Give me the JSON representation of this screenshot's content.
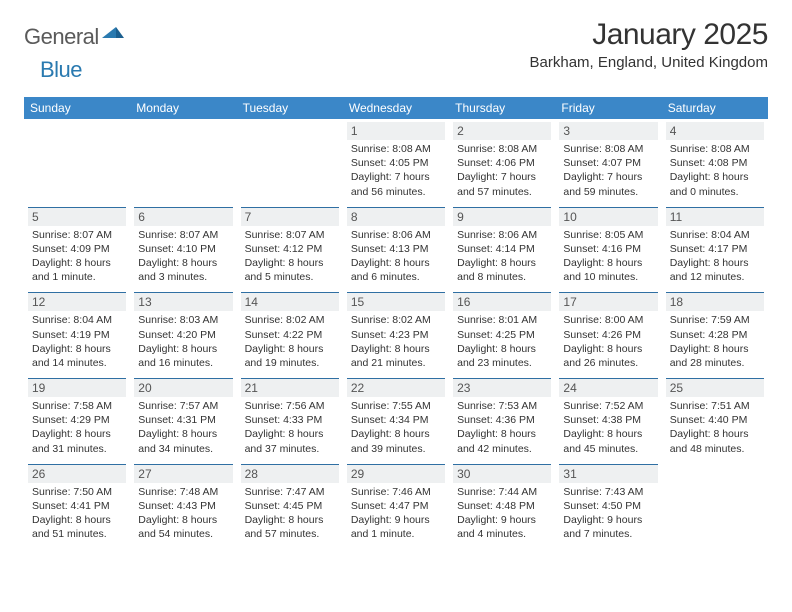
{
  "logo": {
    "word1": "General",
    "word2": "Blue"
  },
  "title": "January 2025",
  "location": "Barkham, England, United Kingdom",
  "colors": {
    "header_bg": "#3b87c8",
    "header_text": "#ffffff",
    "daynum_bg": "#eef0f1",
    "daynum_text": "#555555",
    "rule": "#2f6fa3",
    "body_text": "#333333",
    "logo_gray": "#5a5a5a",
    "logo_blue": "#2a7ab0",
    "page_bg": "#ffffff"
  },
  "typography": {
    "title_fontsize": 30,
    "location_fontsize": 15,
    "header_fontsize": 12,
    "daynum_fontsize": 12,
    "details_fontsize": 10.5,
    "font_family": "Arial"
  },
  "table": {
    "type": "calendar",
    "columns": [
      "Sunday",
      "Monday",
      "Tuesday",
      "Wednesday",
      "Thursday",
      "Friday",
      "Saturday"
    ],
    "rows": [
      [
        {
          "empty": true
        },
        {
          "empty": true
        },
        {
          "empty": true
        },
        {
          "day": "1",
          "sunrise": "Sunrise: 8:08 AM",
          "sunset": "Sunset: 4:05 PM",
          "daylight": "Daylight: 7 hours and 56 minutes."
        },
        {
          "day": "2",
          "sunrise": "Sunrise: 8:08 AM",
          "sunset": "Sunset: 4:06 PM",
          "daylight": "Daylight: 7 hours and 57 minutes."
        },
        {
          "day": "3",
          "sunrise": "Sunrise: 8:08 AM",
          "sunset": "Sunset: 4:07 PM",
          "daylight": "Daylight: 7 hours and 59 minutes."
        },
        {
          "day": "4",
          "sunrise": "Sunrise: 8:08 AM",
          "sunset": "Sunset: 4:08 PM",
          "daylight": "Daylight: 8 hours and 0 minutes."
        }
      ],
      [
        {
          "day": "5",
          "sunrise": "Sunrise: 8:07 AM",
          "sunset": "Sunset: 4:09 PM",
          "daylight": "Daylight: 8 hours and 1 minute."
        },
        {
          "day": "6",
          "sunrise": "Sunrise: 8:07 AM",
          "sunset": "Sunset: 4:10 PM",
          "daylight": "Daylight: 8 hours and 3 minutes."
        },
        {
          "day": "7",
          "sunrise": "Sunrise: 8:07 AM",
          "sunset": "Sunset: 4:12 PM",
          "daylight": "Daylight: 8 hours and 5 minutes."
        },
        {
          "day": "8",
          "sunrise": "Sunrise: 8:06 AM",
          "sunset": "Sunset: 4:13 PM",
          "daylight": "Daylight: 8 hours and 6 minutes."
        },
        {
          "day": "9",
          "sunrise": "Sunrise: 8:06 AM",
          "sunset": "Sunset: 4:14 PM",
          "daylight": "Daylight: 8 hours and 8 minutes."
        },
        {
          "day": "10",
          "sunrise": "Sunrise: 8:05 AM",
          "sunset": "Sunset: 4:16 PM",
          "daylight": "Daylight: 8 hours and 10 minutes."
        },
        {
          "day": "11",
          "sunrise": "Sunrise: 8:04 AM",
          "sunset": "Sunset: 4:17 PM",
          "daylight": "Daylight: 8 hours and 12 minutes."
        }
      ],
      [
        {
          "day": "12",
          "sunrise": "Sunrise: 8:04 AM",
          "sunset": "Sunset: 4:19 PM",
          "daylight": "Daylight: 8 hours and 14 minutes."
        },
        {
          "day": "13",
          "sunrise": "Sunrise: 8:03 AM",
          "sunset": "Sunset: 4:20 PM",
          "daylight": "Daylight: 8 hours and 16 minutes."
        },
        {
          "day": "14",
          "sunrise": "Sunrise: 8:02 AM",
          "sunset": "Sunset: 4:22 PM",
          "daylight": "Daylight: 8 hours and 19 minutes."
        },
        {
          "day": "15",
          "sunrise": "Sunrise: 8:02 AM",
          "sunset": "Sunset: 4:23 PM",
          "daylight": "Daylight: 8 hours and 21 minutes."
        },
        {
          "day": "16",
          "sunrise": "Sunrise: 8:01 AM",
          "sunset": "Sunset: 4:25 PM",
          "daylight": "Daylight: 8 hours and 23 minutes."
        },
        {
          "day": "17",
          "sunrise": "Sunrise: 8:00 AM",
          "sunset": "Sunset: 4:26 PM",
          "daylight": "Daylight: 8 hours and 26 minutes."
        },
        {
          "day": "18",
          "sunrise": "Sunrise: 7:59 AM",
          "sunset": "Sunset: 4:28 PM",
          "daylight": "Daylight: 8 hours and 28 minutes."
        }
      ],
      [
        {
          "day": "19",
          "sunrise": "Sunrise: 7:58 AM",
          "sunset": "Sunset: 4:29 PM",
          "daylight": "Daylight: 8 hours and 31 minutes."
        },
        {
          "day": "20",
          "sunrise": "Sunrise: 7:57 AM",
          "sunset": "Sunset: 4:31 PM",
          "daylight": "Daylight: 8 hours and 34 minutes."
        },
        {
          "day": "21",
          "sunrise": "Sunrise: 7:56 AM",
          "sunset": "Sunset: 4:33 PM",
          "daylight": "Daylight: 8 hours and 37 minutes."
        },
        {
          "day": "22",
          "sunrise": "Sunrise: 7:55 AM",
          "sunset": "Sunset: 4:34 PM",
          "daylight": "Daylight: 8 hours and 39 minutes."
        },
        {
          "day": "23",
          "sunrise": "Sunrise: 7:53 AM",
          "sunset": "Sunset: 4:36 PM",
          "daylight": "Daylight: 8 hours and 42 minutes."
        },
        {
          "day": "24",
          "sunrise": "Sunrise: 7:52 AM",
          "sunset": "Sunset: 4:38 PM",
          "daylight": "Daylight: 8 hours and 45 minutes."
        },
        {
          "day": "25",
          "sunrise": "Sunrise: 7:51 AM",
          "sunset": "Sunset: 4:40 PM",
          "daylight": "Daylight: 8 hours and 48 minutes."
        }
      ],
      [
        {
          "day": "26",
          "sunrise": "Sunrise: 7:50 AM",
          "sunset": "Sunset: 4:41 PM",
          "daylight": "Daylight: 8 hours and 51 minutes."
        },
        {
          "day": "27",
          "sunrise": "Sunrise: 7:48 AM",
          "sunset": "Sunset: 4:43 PM",
          "daylight": "Daylight: 8 hours and 54 minutes."
        },
        {
          "day": "28",
          "sunrise": "Sunrise: 7:47 AM",
          "sunset": "Sunset: 4:45 PM",
          "daylight": "Daylight: 8 hours and 57 minutes."
        },
        {
          "day": "29",
          "sunrise": "Sunrise: 7:46 AM",
          "sunset": "Sunset: 4:47 PM",
          "daylight": "Daylight: 9 hours and 1 minute."
        },
        {
          "day": "30",
          "sunrise": "Sunrise: 7:44 AM",
          "sunset": "Sunset: 4:48 PM",
          "daylight": "Daylight: 9 hours and 4 minutes."
        },
        {
          "day": "31",
          "sunrise": "Sunrise: 7:43 AM",
          "sunset": "Sunset: 4:50 PM",
          "daylight": "Daylight: 9 hours and 7 minutes."
        },
        {
          "empty": true
        }
      ]
    ]
  }
}
